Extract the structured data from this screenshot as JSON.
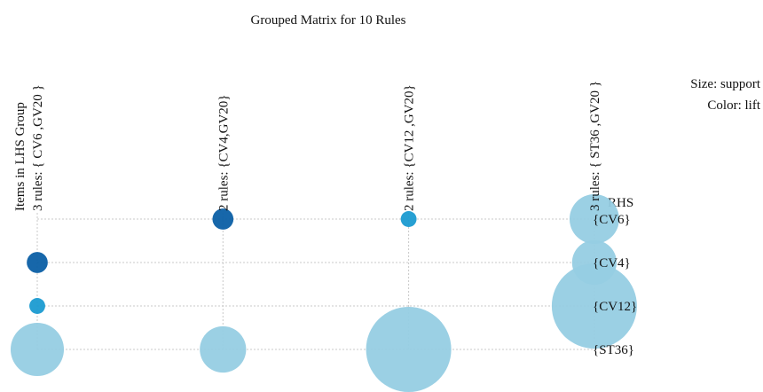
{
  "chart_data": {
    "type": "grouped_matrix",
    "title": "Grouped Matrix for 10 Rules",
    "legend": [
      "Size: support",
      "Color: lift"
    ],
    "x_label": "Items in LHS Group",
    "y_label": "RHS",
    "rows": [
      "{CV6}",
      "{CV4}",
      "{CV12}",
      "{ST36}"
    ],
    "columns": [
      {
        "label": "3 rules: { CV6 ,GV20 }",
        "support": [
          null,
          0.014,
          0.008,
          0.09
        ],
        "colors": [
          null,
          "#0b5fa5",
          "#1b9bd1",
          "#96cde3"
        ]
      },
      {
        "label": "2 rules: {CV4,GV20}",
        "support": [
          0.014,
          null,
          null,
          0.068
        ],
        "colors": [
          "#0b5fa5",
          null,
          null,
          "#96cde3"
        ]
      },
      {
        "label": "2 rules: {CV12 ,GV20}",
        "support": [
          0.008,
          null,
          null,
          0.23
        ],
        "colors": [
          "#1b9bd1",
          null,
          null,
          "#96cde3"
        ]
      },
      {
        "label": "3 rules: { ST36 ,GV20 }",
        "support": [
          0.078,
          0.063,
          0.23,
          null
        ],
        "colors": [
          "#96cde3",
          "#96cde3",
          "#96cde3",
          null
        ]
      }
    ]
  }
}
